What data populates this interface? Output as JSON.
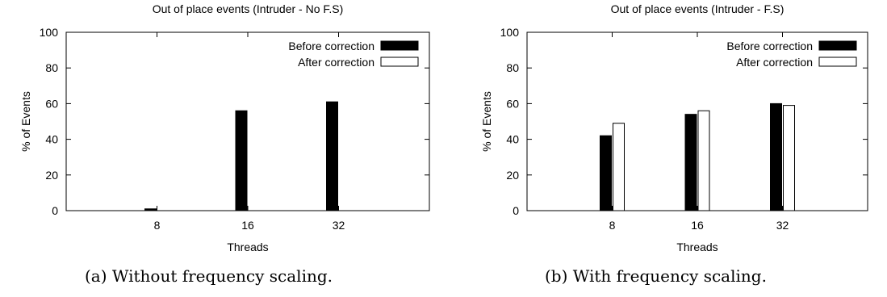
{
  "chart_data": [
    {
      "type": "bar",
      "title": "Out of place events (Intruder - No F.S)",
      "xlabel": "Threads",
      "ylabel": "% of Events",
      "categories": [
        "8",
        "16",
        "32"
      ],
      "series": [
        {
          "name": "Before correction",
          "values": [
            1,
            56,
            61
          ],
          "color": "#000000"
        },
        {
          "name": "After correction",
          "values": [
            0,
            0,
            0
          ],
          "color": "#ffffff"
        }
      ],
      "ylim": [
        0,
        100
      ],
      "yticks": [
        0,
        20,
        40,
        60,
        80,
        100
      ],
      "legend_position": "top-right",
      "grid": false
    },
    {
      "type": "bar",
      "title": "Out of place events (Intruder - F.S)",
      "xlabel": "Threads",
      "ylabel": "% of Events",
      "categories": [
        "8",
        "16",
        "32"
      ],
      "series": [
        {
          "name": "Before correction",
          "values": [
            42,
            54,
            60
          ],
          "color": "#000000"
        },
        {
          "name": "After correction",
          "values": [
            49,
            56,
            59
          ],
          "color": "#ffffff"
        }
      ],
      "ylim": [
        0,
        100
      ],
      "yticks": [
        0,
        20,
        40,
        60,
        80,
        100
      ],
      "legend_position": "top-right",
      "grid": false
    }
  ],
  "captions": [
    "(a) Without frequency scaling.",
    "(b) With frequency scaling."
  ]
}
